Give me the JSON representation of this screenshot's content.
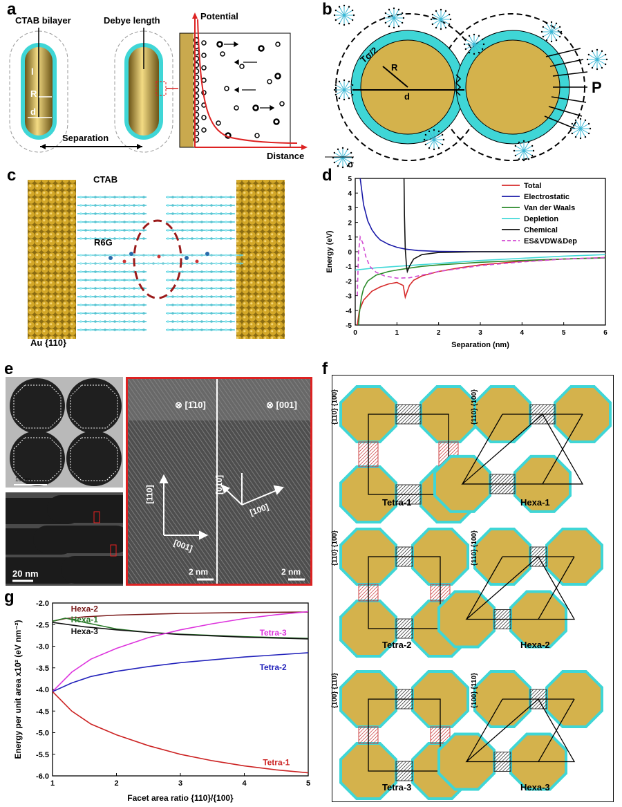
{
  "panels": {
    "a": {
      "letter": "a",
      "labels": {
        "ctab": "CTAB bilayer",
        "debye": "Debye length",
        "l": "l",
        "R": "R",
        "d": "d",
        "separation": "Separation",
        "potential": "Potential",
        "distance": "Distance"
      }
    },
    "b": {
      "letter": "b",
      "labels": {
        "tau": "Tσ/2",
        "R": "R",
        "d": "d",
        "P": "P",
        "sigma": "σ"
      }
    },
    "c": {
      "letter": "c",
      "labels": {
        "ctab": "CTAB",
        "r6g": "R6G",
        "au": "Au {110}"
      }
    },
    "d": {
      "letter": "d"
    },
    "e": {
      "letter": "e",
      "labels": {
        "scale_top": "10 nm",
        "scale_bottom": "20 nm",
        "scale_hr1": "2 nm",
        "scale_hr2": "2 nm",
        "zone1": "⊗ [1̄10]",
        "zone2": "⊗ [001]",
        "v110": "[110]",
        "v001": "[001]",
        "v010": "[010]",
        "v100": "[100]"
      }
    },
    "f": {
      "letter": "f",
      "cells": [
        {
          "name": "Tetra-1",
          "facets": "{110} {100}"
        },
        {
          "name": "Hexa-1",
          "facets": "{110} {100}"
        },
        {
          "name": "Tetra-2",
          "facets": "{110} {100}"
        },
        {
          "name": "Hexa-2",
          "facets": "{110} {100}"
        },
        {
          "name": "Tetra-3",
          "facets": "{100} {110}"
        },
        {
          "name": "Hexa-3",
          "facets": "{100} {110}"
        }
      ]
    },
    "g": {
      "letter": "g"
    }
  },
  "colors": {
    "gold": "#d4b24c",
    "cyan": "#3fd6d6",
    "red": "#cc2222"
  },
  "chart_data": [
    {
      "id": "d",
      "type": "line",
      "xlabel": "Separation (nm)",
      "ylabel": "Energy (eV)",
      "xlim": [
        0,
        6
      ],
      "ylim": [
        -5,
        5
      ],
      "xticks": [
        0,
        1,
        2,
        3,
        4,
        5,
        6
      ],
      "yticks": [
        5,
        4,
        3,
        2,
        1,
        0,
        -1,
        -2,
        -3,
        -4,
        -5
      ],
      "legend_position": "top-right",
      "series": [
        {
          "name": "Total",
          "color": "#d62a2a",
          "dash": false,
          "x": [
            0.05,
            0.1,
            0.2,
            0.4,
            0.6,
            0.8,
            1.0,
            1.15,
            1.2,
            1.25,
            1.3,
            1.4,
            1.6,
            2,
            2.5,
            3,
            4,
            5,
            6
          ],
          "y": [
            -5,
            -4,
            -3.3,
            -2.7,
            -2.4,
            -2.2,
            -2.1,
            -2.3,
            -3.1,
            -2.7,
            -2.3,
            -1.95,
            -1.65,
            -1.35,
            -1.1,
            -0.9,
            -0.65,
            -0.5,
            -0.4
          ]
        },
        {
          "name": "Electrostatic",
          "color": "#1a1aa8",
          "dash": false,
          "x": [
            0.12,
            0.2,
            0.3,
            0.4,
            0.5,
            0.6,
            0.8,
            1.0,
            1.2,
            1.5,
            2,
            3,
            4,
            5,
            6
          ],
          "y": [
            5,
            3.2,
            2.1,
            1.5,
            1.1,
            0.8,
            0.5,
            0.3,
            0.18,
            0.08,
            0.02,
            0,
            0,
            0,
            0
          ]
        },
        {
          "name": "Van der Waals",
          "color": "#2a8a2a",
          "dash": false,
          "x": [
            0.08,
            0.1,
            0.15,
            0.2,
            0.3,
            0.5,
            0.8,
            1.0,
            1.3,
            1.6,
            2,
            3,
            4,
            5,
            6
          ],
          "y": [
            -5,
            -4.2,
            -3.1,
            -2.5,
            -2.0,
            -1.6,
            -1.35,
            -1.25,
            -1.12,
            -1.0,
            -0.9,
            -0.72,
            -0.6,
            -0.5,
            -0.42
          ]
        },
        {
          "name": "Depletion",
          "color": "#40d8d8",
          "dash": false,
          "x": [
            0,
            0.5,
            1,
            1.5,
            2,
            3,
            4,
            5,
            6
          ],
          "y": [
            -1.25,
            -1.1,
            -1.0,
            -0.9,
            -0.8,
            -0.6,
            -0.45,
            -0.3,
            -0.2
          ]
        },
        {
          "name": "Chemical",
          "color": "#111111",
          "dash": false,
          "x": [
            1.17,
            1.18,
            1.2,
            1.23,
            1.25,
            1.3,
            1.4,
            1.6,
            2,
            3,
            6
          ],
          "y": [
            5,
            2.5,
            0.2,
            -1.0,
            -1.35,
            -1.0,
            -0.5,
            -0.2,
            -0.05,
            0,
            0
          ]
        },
        {
          "name": "ES&VDW&Dep",
          "color": "#d24ad2",
          "dash": true,
          "x": [
            0.05,
            0.08,
            0.12,
            0.18,
            0.25,
            0.35,
            0.5,
            0.7,
            1.0,
            1.3,
            1.6,
            2,
            3,
            4,
            5,
            6
          ],
          "y": [
            -3.0,
            0.0,
            1.0,
            0.6,
            -0.3,
            -1.0,
            -1.4,
            -1.65,
            -1.8,
            -1.78,
            -1.6,
            -1.35,
            -0.95,
            -0.7,
            -0.5,
            -0.4
          ]
        }
      ]
    },
    {
      "id": "g",
      "type": "line",
      "xlabel": "Facet area ratio {110}/{100}",
      "ylabel": "Energy per unit area x10² (eV nm⁻²)",
      "xlim": [
        1,
        5
      ],
      "ylim": [
        -6.0,
        -2.0
      ],
      "xticks": [
        1,
        2,
        3,
        4,
        5
      ],
      "yticks": [
        -2.0,
        -2.5,
        -3.0,
        -3.5,
        -4.0,
        -4.5,
        -5.0,
        -5.5,
        -6.0
      ],
      "series": [
        {
          "name": "Hexa-2",
          "color": "#7a1a1a",
          "label_x": 1.5,
          "label_y": -2.2,
          "x": [
            1,
            1.2,
            1.5,
            2,
            3,
            4,
            5
          ],
          "y": [
            -2.42,
            -2.36,
            -2.32,
            -2.28,
            -2.24,
            -2.22,
            -2.21
          ]
        },
        {
          "name": "Hexa-1",
          "color": "#2a7a2a",
          "label_x": 1.5,
          "label_y": -2.45,
          "x": [
            1,
            1.2,
            1.5,
            2,
            2.5,
            3,
            4,
            5
          ],
          "y": [
            -2.42,
            -2.35,
            -2.45,
            -2.6,
            -2.68,
            -2.72,
            -2.78,
            -2.82
          ]
        },
        {
          "name": "Hexa-3",
          "color": "#111111",
          "label_x": 1.5,
          "label_y": -2.72,
          "x": [
            1,
            1.5,
            2,
            2.5,
            3,
            4,
            5
          ],
          "y": [
            -2.45,
            -2.55,
            -2.62,
            -2.68,
            -2.73,
            -2.79,
            -2.83
          ]
        },
        {
          "name": "Tetra-3",
          "color": "#dd33dd",
          "label_x": 4.45,
          "label_y": -2.75,
          "x": [
            1,
            1.3,
            1.6,
            2,
            2.5,
            3,
            3.5,
            4,
            4.5,
            5
          ],
          "y": [
            -4.05,
            -3.6,
            -3.3,
            -3.05,
            -2.8,
            -2.62,
            -2.48,
            -2.36,
            -2.27,
            -2.2
          ]
        },
        {
          "name": "Tetra-2",
          "color": "#2222bb",
          "label_x": 4.45,
          "label_y": -3.55,
          "x": [
            1,
            1.3,
            1.6,
            2,
            2.5,
            3,
            4,
            5
          ],
          "y": [
            -4.05,
            -3.85,
            -3.7,
            -3.58,
            -3.47,
            -3.38,
            -3.25,
            -3.15
          ]
        },
        {
          "name": "Tetra-1",
          "color": "#cc2222",
          "label_x": 4.5,
          "label_y": -5.75,
          "x": [
            1,
            1.3,
            1.6,
            2,
            2.5,
            3,
            3.5,
            4,
            4.5,
            5
          ],
          "y": [
            -4.05,
            -4.5,
            -4.8,
            -5.05,
            -5.3,
            -5.5,
            -5.65,
            -5.77,
            -5.86,
            -5.93
          ]
        }
      ]
    }
  ]
}
